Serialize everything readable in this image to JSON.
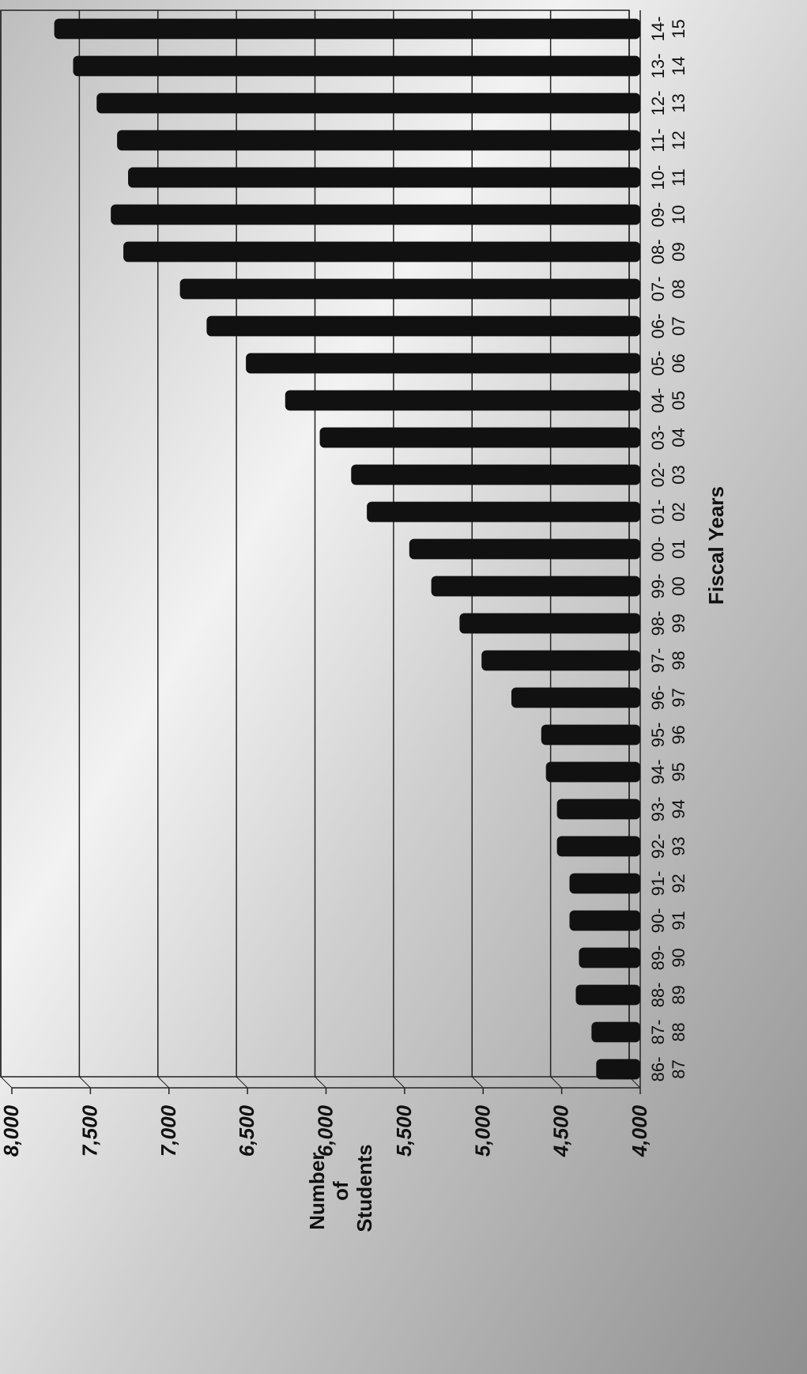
{
  "chart_data": {
    "type": "bar",
    "x_label": "Fiscal Years",
    "y_label": [
      "Number",
      "of",
      "Students"
    ],
    "categories": [
      [
        "86-",
        "87"
      ],
      [
        "87-",
        "88"
      ],
      [
        "88-",
        "89"
      ],
      [
        "89-",
        "90"
      ],
      [
        "90-",
        "91"
      ],
      [
        "91-",
        "92"
      ],
      [
        "92-",
        "93"
      ],
      [
        "93-",
        "94"
      ],
      [
        "94-",
        "95"
      ],
      [
        "95-",
        "96"
      ],
      [
        "96-",
        "97"
      ],
      [
        "97-",
        "98"
      ],
      [
        "98-",
        "99"
      ],
      [
        "99-",
        "00"
      ],
      [
        "00-",
        "01"
      ],
      [
        "01-",
        "02"
      ],
      [
        "02-",
        "03"
      ],
      [
        "03-",
        "04"
      ],
      [
        "04-",
        "05"
      ],
      [
        "05-",
        "06"
      ],
      [
        "06-",
        "07"
      ],
      [
        "07-",
        "08"
      ],
      [
        "08-",
        "09"
      ],
      [
        "09-",
        "10"
      ],
      [
        "10-",
        "11"
      ],
      [
        "11-",
        "12"
      ],
      [
        "12-",
        "13"
      ],
      [
        "13-",
        "14"
      ],
      [
        "14-",
        "15"
      ]
    ],
    "values": [
      4250,
      4280,
      4380,
      4360,
      4420,
      4420,
      4500,
      4500,
      4570,
      4600,
      4790,
      4980,
      5120,
      5300,
      5440,
      5710,
      5810,
      6010,
      6230,
      6480,
      6730,
      6900,
      7260,
      7340,
      7230,
      7300,
      7430,
      7580,
      7700
    ],
    "color": "#111111",
    "ylim": [
      4000,
      8000
    ],
    "yticks": [
      {
        "value": 4000,
        "label": "4,000"
      },
      {
        "value": 4500,
        "label": "4,500"
      },
      {
        "value": 5000,
        "label": "5,000"
      },
      {
        "value": 5500,
        "label": "5,500"
      },
      {
        "value": 6000,
        "label": "6,000"
      },
      {
        "value": 6500,
        "label": "6,500"
      },
      {
        "value": 7000,
        "label": "7,000"
      },
      {
        "value": 7500,
        "label": "7,500"
      },
      {
        "value": 8000,
        "label": "8,000"
      }
    ],
    "grid": true
  }
}
